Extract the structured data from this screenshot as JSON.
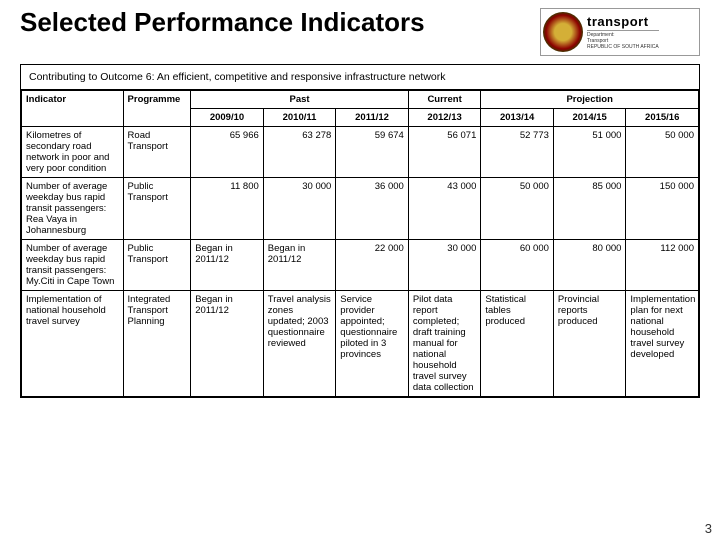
{
  "title": "Selected Performance Indicators",
  "logo": {
    "brand": "transport",
    "dept": "Department:",
    "sub": "Transport",
    "country": "REPUBLIC OF SOUTH AFRICA"
  },
  "contributing": "Contributing to Outcome 6: An efficient, competitive and responsive infrastructure network",
  "headers": {
    "indicator": "Indicator",
    "programme": "Programme",
    "past": "Past",
    "current": "Current",
    "projection": "Projection"
  },
  "years": [
    "2009/10",
    "2010/11",
    "2011/12",
    "2012/13",
    "2013/14",
    "2014/15",
    "2015/16"
  ],
  "rows": [
    {
      "indicator": "Kilometres of secondary road network in poor and very poor condition",
      "programme": "Road Transport",
      "cells": [
        "65 966",
        "63 278",
        "59 674",
        "56 071",
        "52 773",
        "51 000",
        "50 000"
      ],
      "numeric": true
    },
    {
      "indicator": "Number of average weekday bus rapid transit passengers: Rea Vaya in Johannesburg",
      "programme": "Public Transport",
      "cells": [
        "11 800",
        "30 000",
        "36 000",
        "43 000",
        "50 000",
        "85 000",
        "150 000"
      ],
      "numeric": true
    },
    {
      "indicator": "Number of average weekday bus rapid transit passengers: My.Citi in Cape Town",
      "programme": "Public Transport",
      "cells": [
        "Began in 2011/12",
        "Began in 2011/12",
        "22 000",
        "30 000",
        "60 000",
        "80 000",
        "112 000"
      ],
      "numeric": false
    },
    {
      "indicator": "Implementation of national household travel survey",
      "programme": "Integrated Transport Planning",
      "cells": [
        "Began in 2011/12",
        "Travel analysis zones updated; 2003 questionnaire reviewed",
        "Service provider appointed; questionnaire piloted in 3 provinces",
        "Pilot data report completed; draft training manual for national household travel survey data collection",
        "Statistical tables produced",
        "Provincial reports produced",
        "Implementation plan for next national household travel survey developed"
      ],
      "numeric": false
    }
  ],
  "colwidths": {
    "indicator": "15%",
    "programme": "10%",
    "year": "10.7%"
  },
  "page_number": "3"
}
